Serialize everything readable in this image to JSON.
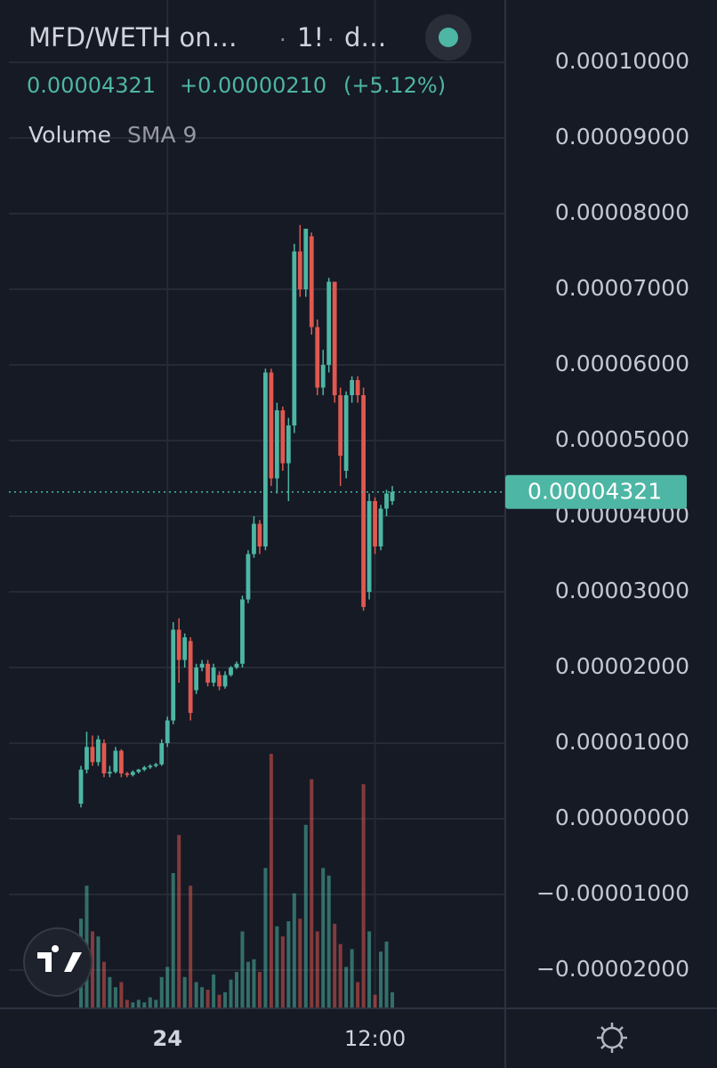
{
  "header": {
    "symbol": "MFD/WETH on…",
    "interval": "1!",
    "exchange": "d…",
    "price": "0.00004321",
    "change": "+0.00000210",
    "change_pct": "(+5.12%)",
    "indicator": "Volume",
    "indicator_param": "SMA 9"
  },
  "chart_data": {
    "type": "candlestick",
    "categories": [
      null,
      null,
      null,
      null,
      null,
      null,
      null,
      null,
      null,
      null,
      null,
      null,
      null,
      null,
      null,
      "24",
      null,
      null,
      null,
      null,
      null,
      null,
      null,
      null,
      null,
      null,
      null,
      null,
      null,
      null,
      null,
      null,
      null,
      null,
      null,
      null,
      null,
      null,
      null,
      null,
      null,
      null,
      null,
      null,
      null,
      null,
      null,
      null,
      null,
      null,
      null,
      "12:00",
      null,
      null,
      null
    ],
    "open": [
      2e-06,
      6.5e-06,
      9.5e-06,
      7.5e-06,
      1e-05,
      6e-06,
      6.2e-06,
      9e-06,
      6e-06,
      5.8e-06,
      6.2e-06,
      6.5e-06,
      6.8e-06,
      7e-06,
      7.2e-06,
      1e-05,
      1.3e-05,
      2.5e-05,
      2.1e-05,
      2.35e-05,
      1.7e-05,
      2e-05,
      2.05e-05,
      1.8e-05,
      1.9e-05,
      1.75e-05,
      1.9e-05,
      2e-05,
      2.05e-05,
      2.9e-05,
      3.5e-05,
      3.9e-05,
      3.6e-05,
      5.9e-05,
      4.5e-05,
      5.4e-05,
      4.7e-05,
      5.2e-05,
      7.5e-05,
      7e-05,
      7.7e-05,
      6.5e-05,
      5.7e-05,
      6e-05,
      7.1e-05,
      5.6e-05,
      4.6e-05,
      5.6e-05,
      5.8e-05,
      5.6e-05,
      3e-05,
      4.2e-05,
      3.6e-05,
      4.1e-05,
      4.2e-05
    ],
    "high": [
      7e-06,
      1.15e-05,
      1.1e-05,
      1.1e-05,
      1.05e-05,
      7e-06,
      9.5e-06,
      9.2e-06,
      6.2e-06,
      6.4e-06,
      6.6e-06,
      7e-06,
      7.2e-06,
      7.4e-06,
      1.05e-05,
      1.35e-05,
      2.6e-05,
      2.65e-05,
      2.45e-05,
      2.4e-05,
      2.05e-05,
      2.1e-05,
      2.1e-05,
      2.05e-05,
      1.95e-05,
      1.95e-05,
      2.02e-05,
      2.08e-05,
      2.95e-05,
      3.55e-05,
      4e-05,
      3.95e-05,
      5.95e-05,
      5.95e-05,
      5.5e-05,
      5.45e-05,
      5.3e-05,
      7.6e-05,
      7.85e-05,
      7.8e-05,
      7.75e-05,
      6.6e-05,
      6.2e-05,
      7.15e-05,
      7.1e-05,
      5.7e-05,
      5.65e-05,
      5.85e-05,
      5.85e-05,
      5.7e-05,
      4.3e-05,
      4.25e-05,
      4.15e-05,
      4.35e-05,
      4.4e-05
    ],
    "low": [
      1.5e-06,
      6e-06,
      7e-06,
      7e-06,
      5.5e-06,
      5.5e-06,
      6e-06,
      5.5e-06,
      5.5e-06,
      5.6e-06,
      6e-06,
      6.3e-06,
      6.6e-06,
      6.8e-06,
      7e-06,
      9.5e-06,
      1.25e-05,
      1.8e-05,
      2e-05,
      1.3e-05,
      1.65e-05,
      1.95e-05,
      1.75e-05,
      1.75e-05,
      1.7e-05,
      1.72e-05,
      1.88e-05,
      1.98e-05,
      2e-05,
      2.85e-05,
      3.45e-05,
      3.5e-05,
      3.55e-05,
      4.4e-05,
      4.3e-05,
      4.6e-05,
      4.2e-05,
      5.1e-05,
      6.9e-05,
      6.9e-05,
      6.4e-05,
      5.6e-05,
      5.6e-05,
      5.9e-05,
      5.5e-05,
      4.4e-05,
      4.5e-05,
      5.5e-05,
      5.5e-05,
      2.75e-05,
      2.9e-05,
      3.5e-05,
      3.55e-05,
      4e-05,
      4.15e-05
    ],
    "close": [
      6.5e-06,
      9.5e-06,
      7.5e-06,
      1.05e-05,
      6e-06,
      6.2e-06,
      9e-06,
      6e-06,
      5.8e-06,
      6.2e-06,
      6.5e-06,
      6.8e-06,
      7e-06,
      7.2e-06,
      1e-05,
      1.3e-05,
      2.5e-05,
      2.1e-05,
      2.4e-05,
      1.4e-05,
      2e-05,
      2.05e-05,
      1.8e-05,
      2e-05,
      1.75e-05,
      1.9e-05,
      2e-05,
      2.05e-05,
      2.9e-05,
      3.5e-05,
      3.9e-05,
      3.6e-05,
      5.9e-05,
      4.5e-05,
      5.4e-05,
      4.7e-05,
      5.2e-05,
      7.5e-05,
      7e-05,
      7.8e-05,
      6.5e-05,
      5.7e-05,
      6e-05,
      7.1e-05,
      5.6e-05,
      4.8e-05,
      5.6e-05,
      5.8e-05,
      5.6e-05,
      2.8e-05,
      4.2e-05,
      3.6e-05,
      4.1e-05,
      4.3e-05,
      4.321e-05
    ],
    "volume": [
      35,
      48,
      30,
      28,
      18,
      12,
      8,
      10,
      3,
      2,
      3,
      2,
      4,
      3,
      12,
      16,
      53,
      68,
      12,
      48,
      10,
      8,
      7,
      13,
      5,
      6,
      11,
      14,
      30,
      18,
      19,
      14,
      55,
      100,
      32,
      28,
      34,
      45,
      35,
      72,
      90,
      30,
      55,
      52,
      33,
      25,
      16,
      23,
      10,
      88,
      30,
      5,
      22,
      26,
      6
    ],
    "volume_lim": [
      0,
      100
    ],
    "up_color": "#4db6a4",
    "down_color": "#e0584f",
    "ylim": [
      -2.494e-05,
      0.00010824
    ],
    "yticks": [
      {
        "value": 0.0001,
        "label": "0.00010000"
      },
      {
        "value": 9e-05,
        "label": "0.00009000"
      },
      {
        "value": 8e-05,
        "label": "0.00008000"
      },
      {
        "value": 7e-05,
        "label": "0.00007000"
      },
      {
        "value": 6e-05,
        "label": "0.00006000"
      },
      {
        "value": 5e-05,
        "label": "0.00005000"
      },
      {
        "value": 4e-05,
        "label": "0.00004000"
      },
      {
        "value": 3e-05,
        "label": "0.00003000"
      },
      {
        "value": 2e-05,
        "label": "0.00002000"
      },
      {
        "value": 1e-05,
        "label": "0.00001000"
      },
      {
        "value": 0,
        "label": "0.00000000"
      },
      {
        "value": -1e-05,
        "label": "−0.00001000"
      },
      {
        "value": -2e-05,
        "label": "−0.00002000"
      }
    ],
    "last_price": {
      "value": 4.321e-05,
      "label": "0.00004321"
    },
    "grid": true
  }
}
